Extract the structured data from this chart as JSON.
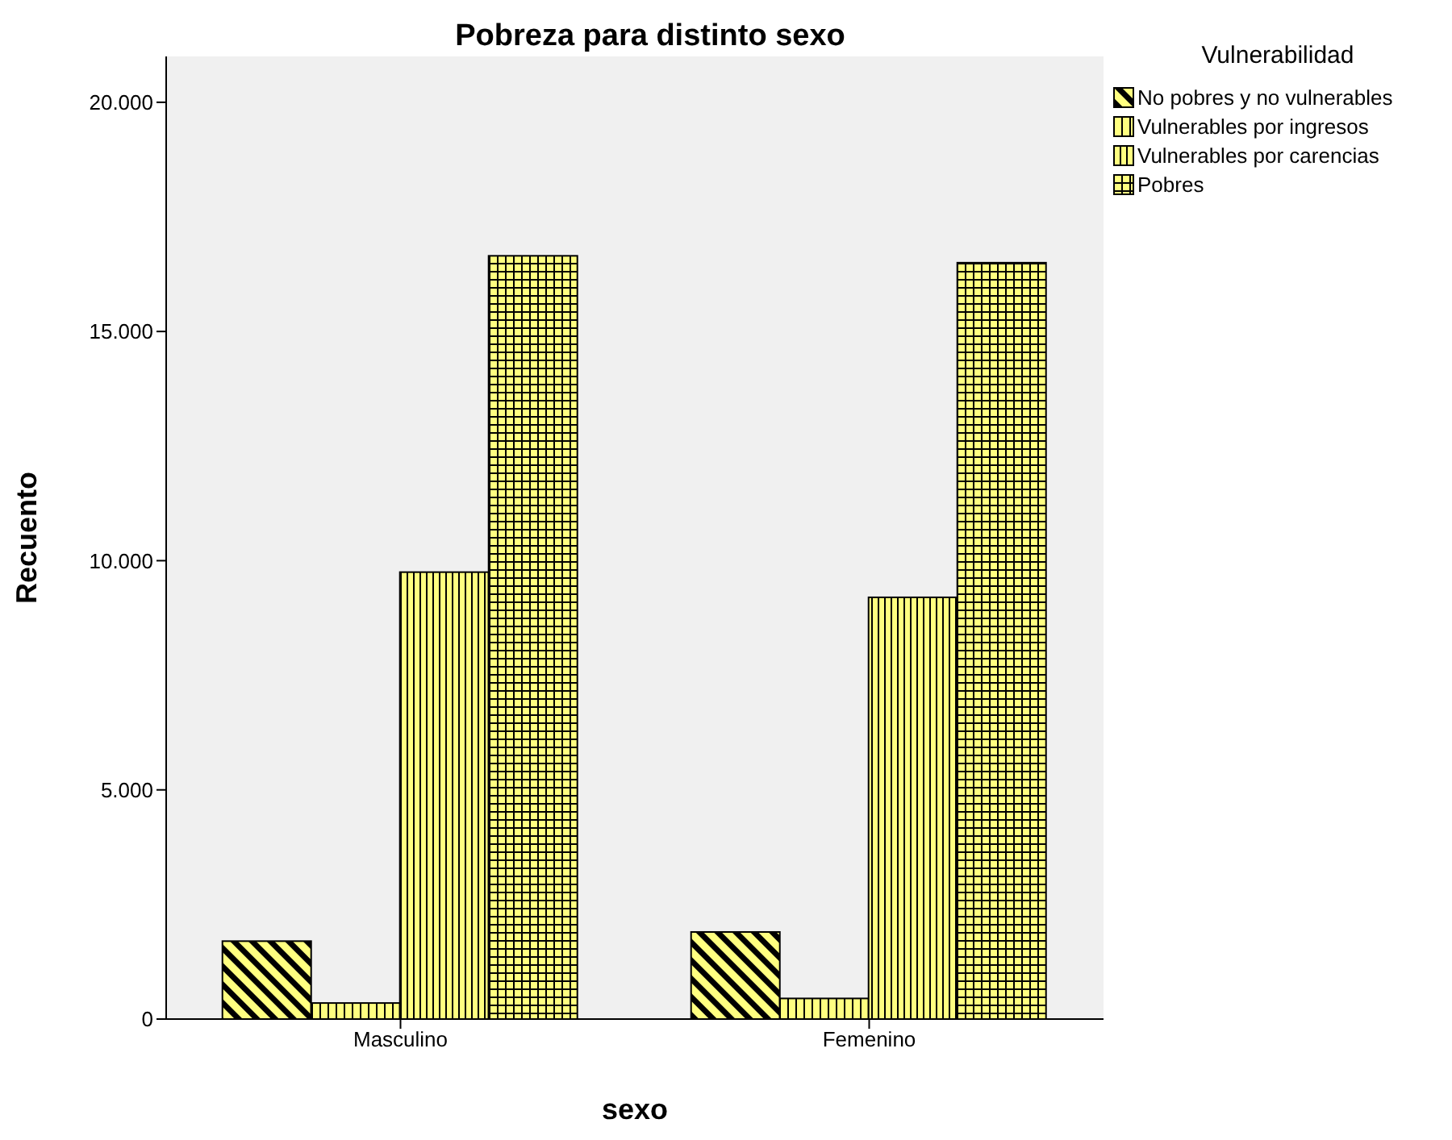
{
  "chart_data": {
    "type": "bar",
    "title": "Pobreza para distinto sexo",
    "xlabel": "sexo",
    "ylabel": "Recuento",
    "legend_title": "Vulnerabilidad",
    "categories": [
      "Masculino",
      "Femenino"
    ],
    "series": [
      {
        "name": "No pobres y no vulnerables",
        "color": "#ffff80",
        "values": [
          1700,
          1900
        ]
      },
      {
        "name": "Vulnerables por ingresos",
        "color": "#ffff80",
        "values": [
          350,
          450
        ]
      },
      {
        "name": "Vulnerables por carencias",
        "color": "#ffff80",
        "values": [
          9750,
          9200
        ]
      },
      {
        "name": "Pobres",
        "color": "#ffff80",
        "values": [
          16650,
          16500
        ]
      }
    ],
    "ylim": [
      0,
      21000
    ],
    "yticks": [
      {
        "value": 0,
        "label": "0"
      },
      {
        "value": 5000,
        "label": "5.000"
      },
      {
        "value": 10000,
        "label": "10.000"
      },
      {
        "value": 15000,
        "label": "15.000"
      },
      {
        "value": 20000,
        "label": "20.000"
      }
    ],
    "grid": false,
    "legend": "top right"
  }
}
